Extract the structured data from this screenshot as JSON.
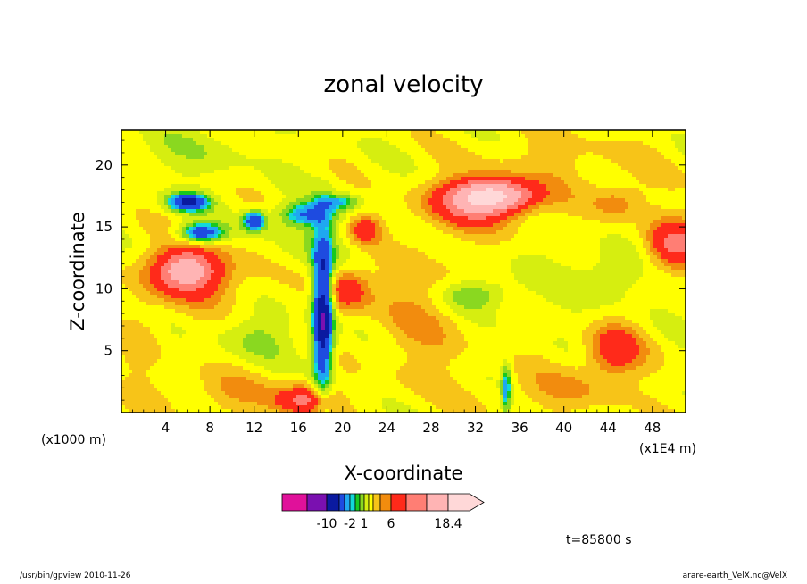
{
  "chart_data": {
    "type": "heatmap",
    "title": "zonal velocity",
    "xlabel": "X-coordinate",
    "ylabel": "Z-coordinate",
    "x_unit_left": "(x1000 m)",
    "x_unit_right": "(x1E4 m)",
    "xlim": [
      0,
      51
    ],
    "ylim": [
      0,
      22.8
    ],
    "x_ticks": [
      4,
      8,
      12,
      16,
      20,
      24,
      28,
      32,
      36,
      40,
      44,
      48
    ],
    "y_ticks": [
      5,
      10,
      15,
      20
    ],
    "time_label": "t=85800 s",
    "colorbar": {
      "colors": [
        "#e0119a",
        "#7a10b0",
        "#0a1aa0",
        "#1e4be0",
        "#1fa8f0",
        "#12d8d8",
        "#18c820",
        "#8ad820",
        "#d6ee10",
        "#ffff00",
        "#f7c418",
        "#f28c0e",
        "#ff2a1a",
        "#ff7e74",
        "#ffb4b4",
        "#ffd8d8"
      ],
      "tick_labels": [
        "-10",
        "-2",
        "1",
        "6",
        "18.4"
      ]
    },
    "field_blobs": [
      {
        "x": 18.2,
        "z": 8.0,
        "rx": 0.9,
        "rz": 6.0,
        "v": -9
      },
      {
        "x": 34.8,
        "z": 2.0,
        "rx": 0.4,
        "rz": 2.0,
        "v": -4
      },
      {
        "x": 6.0,
        "z": 17.0,
        "rx": 1.8,
        "rz": 0.7,
        "v": -7
      },
      {
        "x": 7.2,
        "z": 14.5,
        "rx": 2.0,
        "rz": 0.8,
        "v": -6
      },
      {
        "x": 12.0,
        "z": 15.5,
        "rx": 1.0,
        "rz": 0.8,
        "v": -6
      },
      {
        "x": 16.6,
        "z": 16.0,
        "rx": 2.3,
        "rz": 0.9,
        "v": -4
      },
      {
        "x": 19.5,
        "z": 17.0,
        "rx": 2.0,
        "rz": 0.6,
        "v": -3
      },
      {
        "x": 33.5,
        "z": 17.5,
        "rx": 3.5,
        "rz": 1.2,
        "v": 9
      },
      {
        "x": 32.0,
        "z": 16.8,
        "rx": 4.5,
        "rz": 2.0,
        "v": 4
      },
      {
        "x": 5.8,
        "z": 11.5,
        "rx": 2.5,
        "rz": 1.5,
        "v": 6
      },
      {
        "x": 7.0,
        "z": 11.2,
        "rx": 4.8,
        "rz": 2.5,
        "v": 3
      },
      {
        "x": 22.0,
        "z": 14.8,
        "rx": 1.5,
        "rz": 1.2,
        "v": 4
      },
      {
        "x": 20.3,
        "z": 10.0,
        "rx": 2.2,
        "rz": 1.8,
        "v": 4
      },
      {
        "x": 44.5,
        "z": 5.0,
        "rx": 2.5,
        "rz": 2.0,
        "v": 4
      },
      {
        "x": 50.0,
        "z": 13.5,
        "rx": 2.5,
        "rz": 2.0,
        "v": 5
      },
      {
        "x": 45.0,
        "z": 17.0,
        "rx": 2.5,
        "rz": 1.5,
        "v": 2
      },
      {
        "x": 16.5,
        "z": 1.0,
        "rx": 2.5,
        "rz": 1.2,
        "v": 5
      },
      {
        "x": 10.0,
        "z": 1.5,
        "rx": 5.0,
        "rz": 1.8,
        "v": 1.5
      },
      {
        "x": 40.0,
        "z": 1.8,
        "rx": 6.0,
        "rz": 1.8,
        "v": 1.5
      },
      {
        "x": 27.0,
        "z": 8.0,
        "rx": 4.5,
        "rz": 6.0,
        "v": 1.5
      },
      {
        "x": 38.0,
        "z": 11.0,
        "rx": 7.0,
        "rz": 4.0,
        "v": -0.3
      },
      {
        "x": 32.0,
        "z": 9.5,
        "rx": 3.0,
        "rz": 1.2,
        "v": -2.5
      },
      {
        "x": 12.5,
        "z": 6.0,
        "rx": 3.5,
        "rz": 1.8,
        "v": -1.5
      },
      {
        "x": 18.0,
        "z": 14.0,
        "rx": 6.0,
        "rz": 3.0,
        "v": -1.0
      },
      {
        "x": 44.0,
        "z": 11.0,
        "rx": 3.0,
        "rz": 2.0,
        "v": -1.5
      },
      {
        "x": 40.0,
        "z": 20.0,
        "rx": 8.0,
        "rz": 3.0,
        "v": 1.0
      },
      {
        "x": 6.0,
        "z": 21.0,
        "rx": 6.0,
        "rz": 2.0,
        "v": -1.0
      },
      {
        "x": 2.0,
        "z": 6.0,
        "rx": 2.0,
        "rz": 6.0,
        "v": 1.0
      }
    ]
  },
  "footer": {
    "left": "/usr/bin/gpview   2010-11-26",
    "right": "arare-earth_VelX.nc@VelX"
  }
}
